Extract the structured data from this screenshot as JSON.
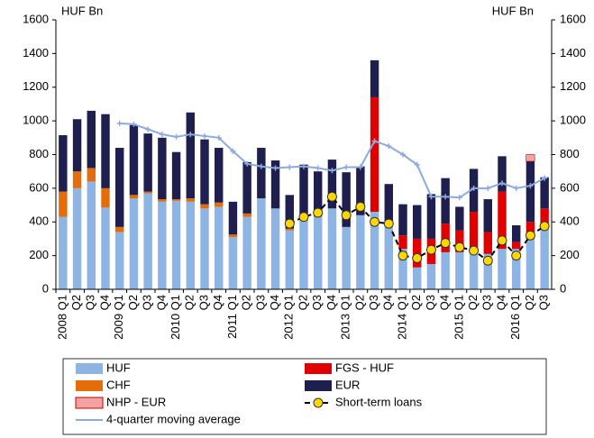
{
  "chart_data": {
    "type": "bar",
    "ylabel": "HUF Bn",
    "y2label": "HUF Bn",
    "categories": [
      "2008 Q1",
      "Q2",
      "Q3",
      "Q4",
      "2009 Q1",
      "Q2",
      "Q3",
      "Q4",
      "2010 Q1",
      "Q2",
      "Q3",
      "Q4",
      "2011 Q1",
      "Q2",
      "Q3",
      "Q4",
      "2012 Q1",
      "Q2",
      "Q3",
      "Q4",
      "2013 Q1",
      "Q2",
      "Q3",
      "Q4",
      "2014 Q1",
      "Q2",
      "Q3",
      "Q4",
      "2015 Q1",
      "Q2",
      "Q3",
      "Q4",
      "2016 Q1",
      "Q2",
      "Q3"
    ],
    "ylim": [
      0,
      1600
    ],
    "yticks": [
      0,
      200,
      400,
      600,
      800,
      1000,
      1200,
      1400,
      1600
    ],
    "y2lim": [
      0,
      1600
    ],
    "y2ticks": [
      0,
      200,
      400,
      600,
      800,
      1000,
      1200,
      1400,
      1600
    ],
    "series": [
      {
        "name": "HUF",
        "type": "bar",
        "color": "#8db4e2",
        "values": [
          430,
          600,
          640,
          485,
          340,
          540,
          570,
          520,
          525,
          520,
          480,
          490,
          310,
          430,
          540,
          480,
          350,
          410,
          430,
          480,
          370,
          440,
          460,
          380,
          240,
          130,
          150,
          220,
          220,
          220,
          210,
          240,
          240,
          300,
          360
        ]
      },
      {
        "name": "FGS - HUF",
        "type": "bar",
        "color": "#e00000",
        "values": [
          0,
          0,
          0,
          0,
          0,
          0,
          0,
          0,
          0,
          0,
          0,
          0,
          0,
          0,
          0,
          0,
          0,
          0,
          0,
          0,
          0,
          0,
          680,
          0,
          80,
          170,
          150,
          170,
          130,
          240,
          130,
          340,
          40,
          100,
          120
        ]
      },
      {
        "name": "CHF",
        "type": "bar",
        "color": "#e46c0a",
        "values": [
          150,
          100,
          80,
          115,
          30,
          20,
          10,
          15,
          10,
          20,
          25,
          25,
          15,
          20,
          0,
          0,
          10,
          15,
          10,
          0,
          0,
          0,
          0,
          0,
          0,
          0,
          0,
          0,
          0,
          0,
          0,
          0,
          0,
          0,
          0
        ]
      },
      {
        "name": "EUR",
        "type": "bar",
        "color": "#1f1f4f",
        "values": [
          335,
          310,
          340,
          440,
          470,
          415,
          345,
          365,
          280,
          510,
          385,
          325,
          195,
          305,
          300,
          285,
          200,
          315,
          260,
          290,
          325,
          290,
          220,
          245,
          185,
          200,
          265,
          270,
          140,
          255,
          195,
          210,
          100,
          360,
          185
        ]
      },
      {
        "name": "NHP - EUR",
        "type": "bar",
        "color": "#f4a3a3",
        "values": [
          0,
          0,
          0,
          0,
          0,
          0,
          0,
          0,
          0,
          0,
          0,
          0,
          0,
          0,
          0,
          0,
          0,
          0,
          0,
          0,
          0,
          0,
          0,
          0,
          0,
          0,
          0,
          0,
          0,
          0,
          0,
          0,
          0,
          40,
          0
        ]
      },
      {
        "name": "Short-term loans",
        "type": "dots",
        "color": "#ffd700",
        "values": [
          null,
          null,
          null,
          null,
          null,
          null,
          null,
          null,
          null,
          null,
          null,
          null,
          null,
          null,
          null,
          null,
          390,
          430,
          455,
          550,
          440,
          490,
          400,
          390,
          200,
          185,
          235,
          275,
          250,
          230,
          170,
          290,
          200,
          320,
          375
        ]
      },
      {
        "name": "4-quarter moving average",
        "type": "line",
        "color": "#8eaadb",
        "values": [
          null,
          null,
          null,
          null,
          985,
          980,
          950,
          920,
          905,
          920,
          910,
          900,
          820,
          745,
          730,
          720,
          725,
          730,
          720,
          705,
          725,
          725,
          880,
          850,
          800,
          740,
          550,
          550,
          545,
          600,
          600,
          630,
          600,
          615,
          660
        ]
      }
    ]
  }
}
